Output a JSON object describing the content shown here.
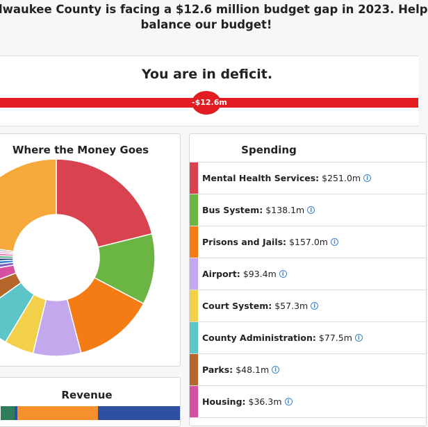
{
  "header": {
    "title_lines": [
      "lwaukee County is facing a $12.6 million budget gap in 2023. Help",
      "balance our budget!"
    ]
  },
  "status": {
    "message": "You are in deficit.",
    "deficit_label": "-$12.6m"
  },
  "donut": {
    "title": "Where the Money Goes",
    "other_slices": [
      {
        "color": "#7b5cc4",
        "value": 12
      },
      {
        "color": "#2f7fd0",
        "value": 10
      },
      {
        "color": "#1f3f7a",
        "value": 9
      },
      {
        "color": "#3aa56b",
        "value": 8
      },
      {
        "color": "#e86fb0",
        "value": 8
      },
      {
        "color": "#f3a6c8",
        "value": 7
      },
      {
        "color": "#9aa0a6",
        "value": 6
      },
      {
        "color": "#f6a93b",
        "value": 270
      }
    ]
  },
  "revenue": {
    "title": "Revenue"
  },
  "spending": {
    "title": "Spending",
    "items": [
      {
        "name": "Mental Health Services:",
        "value": 251.0,
        "label": "$251.0m",
        "color": "#d9434f"
      },
      {
        "name": "Bus System:",
        "value": 138.1,
        "label": "$138.1m",
        "color": "#6bb545"
      },
      {
        "name": "Prisons and Jails:",
        "value": 157.0,
        "label": "$157.0m",
        "color": "#f57c14"
      },
      {
        "name": "Airport:",
        "value": 93.4,
        "label": "$93.4m",
        "color": "#c4a8ee"
      },
      {
        "name": "Court System:",
        "value": 57.3,
        "label": "$57.3m",
        "color": "#f3d04a"
      },
      {
        "name": "County Administration:",
        "value": 77.5,
        "label": "$77.5m",
        "color": "#5bc5c8"
      },
      {
        "name": "Parks:",
        "value": 48.1,
        "label": "$48.1m",
        "color": "#b5662a"
      },
      {
        "name": "Housing:",
        "value": 36.3,
        "label": "$36.3m",
        "color": "#d64fa0"
      }
    ]
  }
}
